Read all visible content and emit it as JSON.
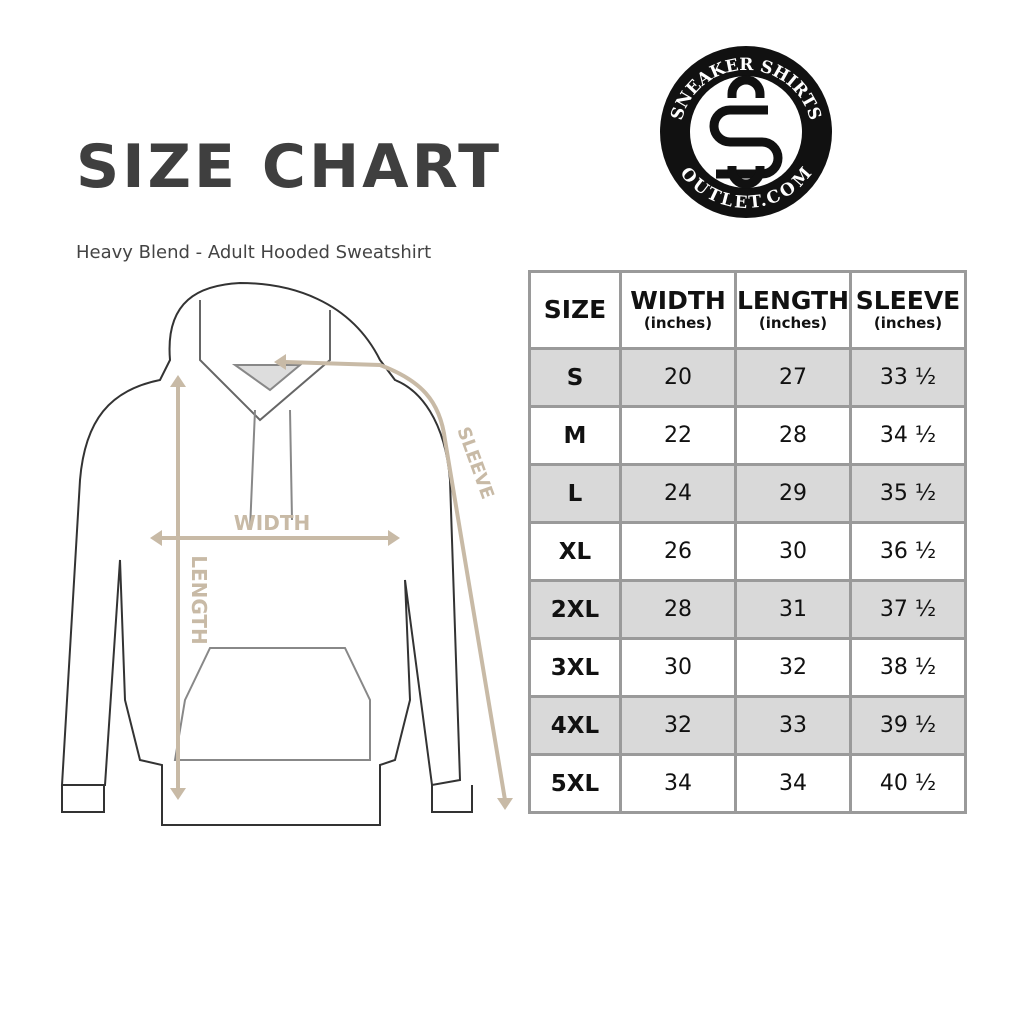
{
  "title": "SIZE CHART",
  "subtitle": "Heavy Blend - Adult Hooded Sweatshirt",
  "logo": {
    "top_text": "SNEAKER SHIRTS",
    "bottom_text": "OUTLET.COM",
    "monogram": "SS"
  },
  "diagram": {
    "width_label": "WIDTH",
    "length_label": "LENGTH",
    "sleeve_label": "SLEEVE",
    "measure_color": "#c8baa6"
  },
  "table": {
    "headers": [
      {
        "label": "SIZE",
        "unit": ""
      },
      {
        "label": "WIDTH",
        "unit": "(inches)"
      },
      {
        "label": "LENGTH",
        "unit": "(inches)"
      },
      {
        "label": "SLEEVE",
        "unit": "(inches)"
      }
    ],
    "rows": [
      [
        "S",
        "20",
        "27",
        "33 ½"
      ],
      [
        "M",
        "22",
        "28",
        "34 ½"
      ],
      [
        "L",
        "24",
        "29",
        "35 ½"
      ],
      [
        "XL",
        "26",
        "30",
        "36 ½"
      ],
      [
        "2XL",
        "28",
        "31",
        "37 ½"
      ],
      [
        "3XL",
        "30",
        "32",
        "38 ½"
      ],
      [
        "4XL",
        "32",
        "33",
        "39 ½"
      ],
      [
        "5XL",
        "34",
        "34",
        "40 ½"
      ]
    ],
    "shade_color": "#d9d9d9",
    "border_color": "#9a9a9a"
  }
}
